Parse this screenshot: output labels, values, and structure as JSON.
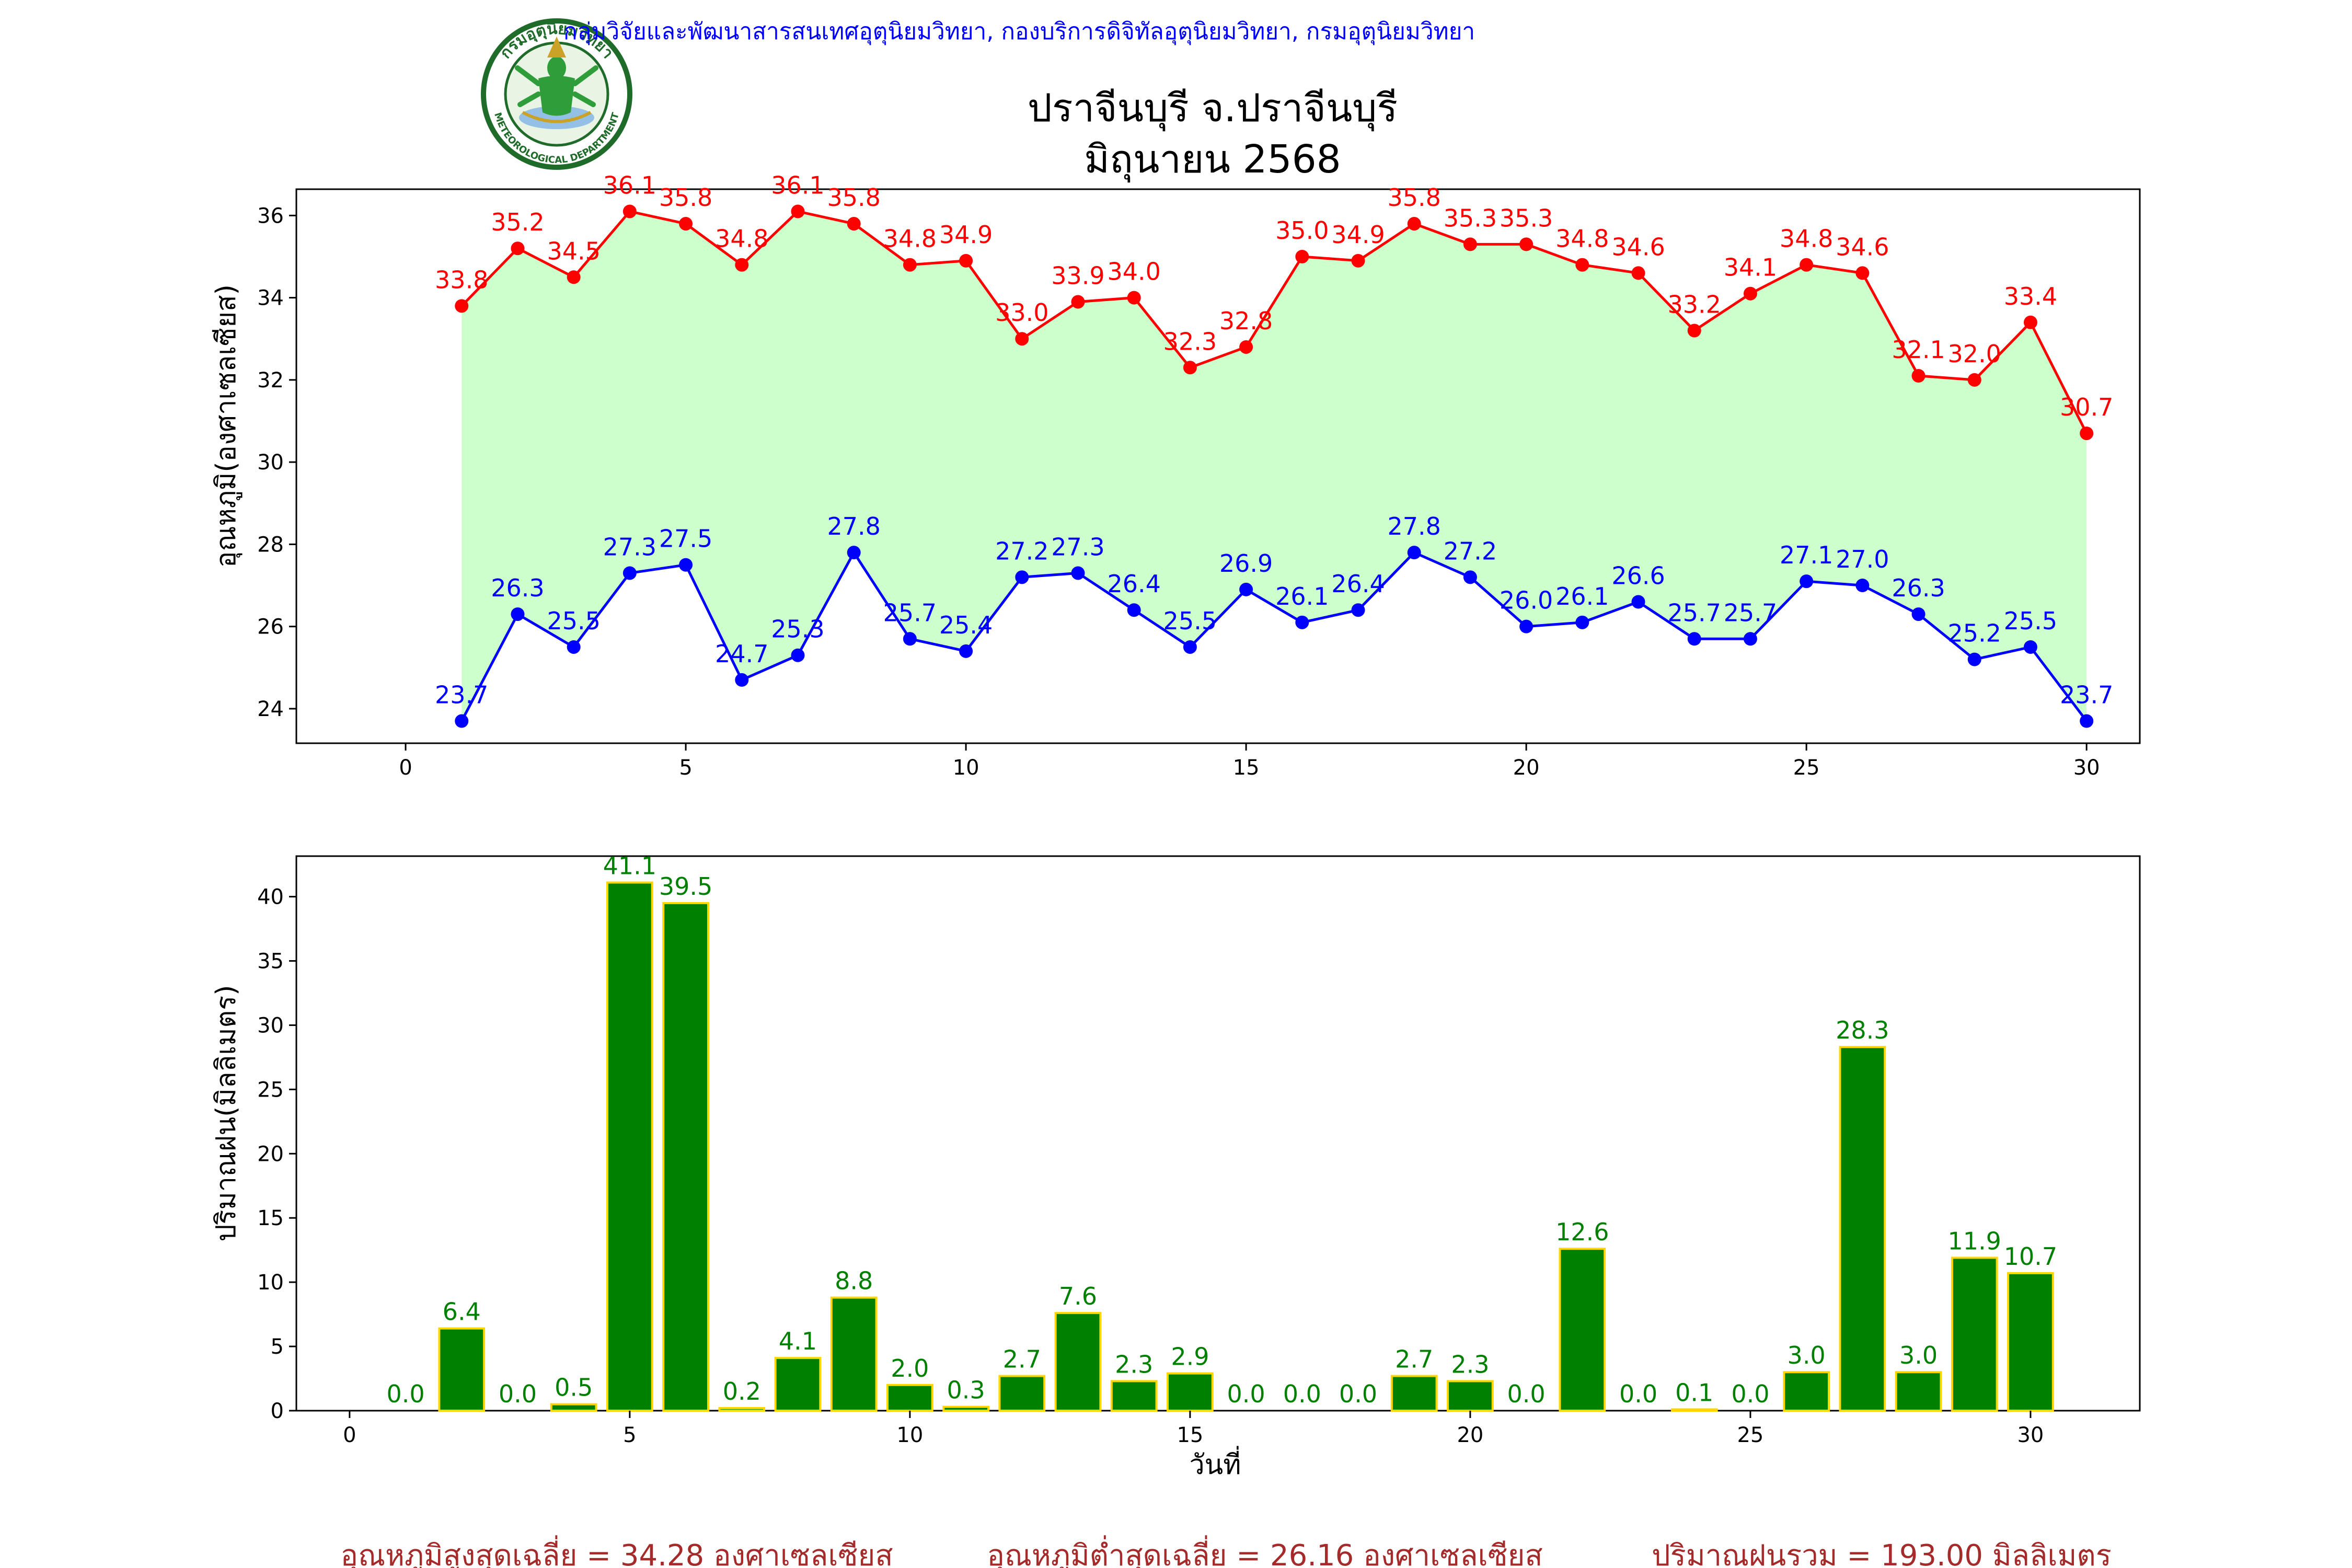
{
  "header": {
    "agency": "กลุ่มวิจัยและพัฒนาสารสนเทศอุตุนิยมวิทยา, กองบริการดิจิทัลอุตุนิยมวิทยา, กรมอุตุนิยมวิทยา",
    "title_line1": "ปราจีนบุรี จ.ปราจีนบุรี",
    "title_line2": "มิถุนายน 2568"
  },
  "logo": {
    "top_text": "กรมอุตุนิยมวิทยา",
    "bottom_text": "METEOROLOGICAL DEPARTMENT"
  },
  "colors": {
    "max_line": "#ff0000",
    "min_line": "#0000ff",
    "fill": "#ccffcc",
    "bar": "#008000",
    "bar_edge": "#ffd700",
    "bar_label": "#008000",
    "header_text": "#0000ff",
    "summary_text": "#a52a2a"
  },
  "chart_data": [
    {
      "type": "line",
      "ylabel": "อุณหภูมิ(องศาเซลเซียส)",
      "xlim": [
        -1.95,
        30.95
      ],
      "ylim": [
        23.16,
        36.64
      ],
      "xticks": [
        0,
        5,
        10,
        15,
        20,
        25,
        30
      ],
      "yticks": [
        24,
        26,
        28,
        30,
        32,
        34,
        36
      ],
      "x": [
        1,
        2,
        3,
        4,
        5,
        6,
        7,
        8,
        9,
        10,
        11,
        12,
        13,
        14,
        15,
        16,
        17,
        18,
        19,
        20,
        21,
        22,
        23,
        24,
        25,
        26,
        27,
        28,
        29,
        30
      ],
      "series": [
        {
          "key": "max",
          "values": [
            33.8,
            35.2,
            34.5,
            36.1,
            35.8,
            34.8,
            36.1,
            35.8,
            34.8,
            34.9,
            33.0,
            33.9,
            34.0,
            32.3,
            32.8,
            35.0,
            34.9,
            35.8,
            35.3,
            35.3,
            34.8,
            34.6,
            33.2,
            34.1,
            34.8,
            34.6,
            32.1,
            32.0,
            33.4,
            30.7
          ]
        },
        {
          "key": "min",
          "values": [
            23.7,
            26.3,
            25.5,
            27.3,
            27.5,
            24.7,
            25.3,
            27.8,
            25.7,
            25.4,
            27.2,
            27.3,
            26.4,
            25.5,
            26.9,
            26.1,
            26.4,
            27.8,
            27.2,
            26.0,
            26.1,
            26.6,
            25.7,
            25.7,
            27.1,
            27.0,
            26.3,
            25.2,
            25.5,
            23.7
          ]
        }
      ]
    },
    {
      "type": "bar",
      "xlabel": "วันที่",
      "ylabel": "ปริมาณฝน(มิลลิเมตร)",
      "xlim": [
        -0.95,
        31.95
      ],
      "ylim": [
        0,
        43.155
      ],
      "xticks": [
        0,
        5,
        10,
        15,
        20,
        25,
        30
      ],
      "yticks": [
        0,
        5,
        10,
        15,
        20,
        25,
        30,
        35,
        40
      ],
      "x": [
        1,
        2,
        3,
        4,
        5,
        6,
        7,
        8,
        9,
        10,
        11,
        12,
        13,
        14,
        15,
        16,
        17,
        18,
        19,
        20,
        21,
        22,
        23,
        24,
        25,
        26,
        27,
        28,
        29,
        30
      ],
      "values": [
        0.0,
        6.4,
        0.0,
        0.5,
        41.1,
        39.5,
        0.2,
        4.1,
        8.8,
        2.0,
        0.3,
        2.7,
        7.6,
        2.3,
        2.9,
        0.0,
        0.0,
        0.0,
        2.7,
        2.3,
        0.0,
        12.6,
        0.0,
        0.1,
        0.0,
        3.0,
        28.3,
        3.0,
        11.9,
        10.7
      ]
    }
  ],
  "summary": {
    "avg_max": "อุณหภูมิสูงสุดเฉลี่ย = 34.28 องศาเซลเซียส",
    "avg_min": "อุณหภูมิต่ำสุดเฉลี่ย = 26.16 องศาเซลเซียส",
    "total_rain": "ปริมาณฝนรวม = 193.00 มิลลิเมตร"
  }
}
